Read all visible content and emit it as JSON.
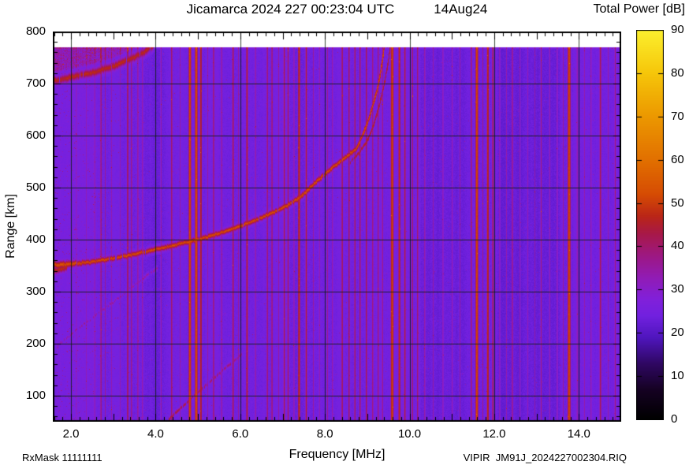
{
  "title": {
    "left": "Jicamarca 2024 227 00:23:04 UTC",
    "right": "14Aug24"
  },
  "colorbar_title": "Total Power [dB]",
  "footer": {
    "rx_mask": "RxMask 11111111",
    "file_name": "VIPIR  JM91J_2024227002304.RIQ"
  },
  "chart_data": {
    "type": "heatmap",
    "title": "Jicamarca 2024 227 00:23:04 UTC  14Aug24",
    "xlabel": "Frequency [MHz]",
    "ylabel": "Range [km]",
    "xlim": [
      1.57,
      15.0
    ],
    "ylim": [
      50,
      800
    ],
    "data_top_km": 770,
    "background_db": 24.3,
    "grid_on": true,
    "grid_color": "rgba(10,30,8,0.8)",
    "x_axis": {
      "minor_step": 0.2,
      "major_step": 1.0,
      "tick_labels": [
        {
          "v": 2.0,
          "t": "2.0"
        },
        {
          "v": 4.0,
          "t": "4.0"
        },
        {
          "v": 6.0,
          "t": "6.0"
        },
        {
          "v": 8.0,
          "t": "8.0"
        },
        {
          "v": 10.0,
          "t": "10.0"
        },
        {
          "v": 12.0,
          "t": "12.0"
        },
        {
          "v": 14.0,
          "t": "14.0"
        }
      ]
    },
    "y_axis": {
      "minor_step": 20,
      "major_step": 100,
      "tick_labels": [
        {
          "v": 100,
          "t": "100"
        },
        {
          "v": 200,
          "t": "200"
        },
        {
          "v": 300,
          "t": "300"
        },
        {
          "v": 400,
          "t": "400"
        },
        {
          "v": 500,
          "t": "500"
        },
        {
          "v": 600,
          "t": "600"
        },
        {
          "v": 700,
          "t": "700"
        },
        {
          "v": 800,
          "t": "800"
        }
      ]
    },
    "colorbar": {
      "label": "Total Power [dB]",
      "min": 0,
      "max": 90,
      "tick_step": 10,
      "tick_labels": [
        {
          "v": 0,
          "t": "0"
        },
        {
          "v": 10,
          "t": "10"
        },
        {
          "v": 20,
          "t": "20"
        },
        {
          "v": 30,
          "t": "30"
        },
        {
          "v": 40,
          "t": "40"
        },
        {
          "v": 50,
          "t": "50"
        },
        {
          "v": 60,
          "t": "60"
        },
        {
          "v": 70,
          "t": "70"
        },
        {
          "v": 80,
          "t": "80"
        },
        {
          "v": 90,
          "t": "90"
        }
      ]
    },
    "palette_stops": [
      [
        0,
        0,
        0,
        0
      ],
      [
        7,
        22,
        2,
        36
      ],
      [
        13,
        48,
        8,
        100
      ],
      [
        19,
        80,
        22,
        190
      ],
      [
        24,
        114,
        33,
        224
      ],
      [
        28,
        130,
        32,
        218
      ],
      [
        33,
        146,
        28,
        180
      ],
      [
        38,
        158,
        24,
        130
      ],
      [
        43,
        168,
        25,
        72
      ],
      [
        47,
        186,
        38,
        24
      ],
      [
        52,
        214,
        76,
        4
      ],
      [
        60,
        226,
        112,
        0
      ],
      [
        70,
        236,
        152,
        0
      ],
      [
        80,
        246,
        198,
        10
      ],
      [
        90,
        252,
        240,
        46
      ]
    ],
    "shade_bands": [
      [
        1.57,
        2.6,
        1.0
      ],
      [
        3.8,
        4.3,
        -0.7
      ],
      [
        5.45,
        6.05,
        -1.0
      ],
      [
        7.62,
        8.28,
        -0.9
      ],
      [
        10.25,
        11.35,
        -1.6
      ],
      [
        12.05,
        13.6,
        -1.8
      ],
      [
        14.0,
        14.45,
        -0.8
      ]
    ],
    "rfi_stripes": [
      [
        2.12,
        33,
        1.2
      ],
      [
        2.35,
        33,
        1.0
      ],
      [
        2.55,
        34,
        1.2
      ],
      [
        2.7,
        40,
        1.2
      ],
      [
        2.8,
        36,
        1.0
      ],
      [
        2.95,
        34,
        1.0
      ],
      [
        3.15,
        34,
        1.0
      ],
      [
        3.33,
        44,
        1.1
      ],
      [
        3.42,
        40,
        1.0
      ],
      [
        3.57,
        36,
        1.4
      ],
      [
        3.68,
        35,
        1.2
      ],
      [
        4.12,
        35,
        1.2
      ],
      [
        4.37,
        42,
        1.1
      ],
      [
        4.57,
        34,
        1.0
      ],
      [
        4.8,
        52,
        1.9
      ],
      [
        4.95,
        53,
        2.0
      ],
      [
        5.06,
        48,
        1.4
      ],
      [
        5.22,
        35,
        1.0
      ],
      [
        5.36,
        41,
        1.1
      ],
      [
        5.55,
        36,
        1.3
      ],
      [
        5.82,
        43,
        1.3
      ],
      [
        5.95,
        36,
        1.0
      ],
      [
        6.15,
        46,
        1.3
      ],
      [
        6.35,
        36,
        1.1
      ],
      [
        6.63,
        41,
        1.1
      ],
      [
        6.74,
        41,
        1.1
      ],
      [
        6.9,
        36,
        1.0
      ],
      [
        7.03,
        42,
        1.3
      ],
      [
        7.12,
        42,
        1.2
      ],
      [
        7.26,
        36,
        1.0
      ],
      [
        7.38,
        49,
        1.6
      ],
      [
        7.55,
        45,
        1.2
      ],
      [
        7.72,
        36,
        1.1
      ],
      [
        7.86,
        35,
        1.0
      ],
      [
        8.05,
        37,
        1.2
      ],
      [
        8.17,
        36,
        1.0
      ],
      [
        8.4,
        42,
        1.3
      ],
      [
        8.56,
        42,
        1.2
      ],
      [
        8.7,
        42,
        1.2
      ],
      [
        8.82,
        42,
        1.2
      ],
      [
        8.97,
        43,
        1.2
      ],
      [
        9.12,
        40,
        1.1
      ],
      [
        9.25,
        40,
        1.1
      ],
      [
        9.35,
        39,
        1.0
      ],
      [
        9.58,
        52,
        2.0
      ],
      [
        9.75,
        49,
        1.5
      ],
      [
        9.88,
        45,
        1.2
      ],
      [
        10.06,
        41,
        1.2
      ],
      [
        10.18,
        41,
        1.2
      ],
      [
        10.35,
        36,
        1.1
      ],
      [
        10.55,
        35,
        1.0
      ],
      [
        10.78,
        35,
        1.0
      ],
      [
        11.0,
        35,
        1.0
      ],
      [
        11.18,
        35,
        1.0
      ],
      [
        11.45,
        40,
        1.2
      ],
      [
        11.58,
        52,
        2.0
      ],
      [
        11.72,
        38,
        1.0
      ],
      [
        11.84,
        49,
        1.5
      ],
      [
        11.96,
        45,
        1.1
      ],
      [
        12.12,
        35,
        1.0
      ],
      [
        12.28,
        34,
        1.0
      ],
      [
        12.42,
        39,
        1.1
      ],
      [
        12.6,
        34,
        1.0
      ],
      [
        12.78,
        34,
        1.0
      ],
      [
        12.95,
        34,
        1.0
      ],
      [
        13.1,
        39,
        1.1
      ],
      [
        13.3,
        35,
        1.0
      ],
      [
        13.48,
        35,
        1.0
      ],
      [
        13.62,
        36,
        1.0
      ],
      [
        13.76,
        52,
        2.2
      ],
      [
        13.95,
        36,
        1.0
      ],
      [
        14.12,
        35,
        1.0
      ],
      [
        14.28,
        36,
        1.0
      ],
      [
        14.5,
        42,
        1.5
      ],
      [
        14.68,
        35,
        1.0
      ],
      [
        14.85,
        39,
        1.2
      ]
    ],
    "traces": [
      {
        "name": "f-region-o-mode",
        "db": 52,
        "sigma": 2.3,
        "sigma_left": 3.3,
        "gap": 0.04,
        "gap2": 0.25,
        "gap2_from": 8.7,
        "pts": [
          [
            1.57,
            352
          ],
          [
            2.0,
            354
          ],
          [
            2.5,
            358
          ],
          [
            3.0,
            365
          ],
          [
            3.5,
            373
          ],
          [
            4.0,
            382
          ],
          [
            4.5,
            391
          ],
          [
            5.0,
            401
          ],
          [
            5.5,
            413
          ],
          [
            6.0,
            427
          ],
          [
            6.5,
            443
          ],
          [
            7.0,
            462
          ],
          [
            7.4,
            481
          ],
          [
            7.8,
            513
          ],
          [
            8.15,
            538
          ],
          [
            8.5,
            560
          ],
          [
            8.75,
            577
          ],
          [
            8.9,
            605
          ],
          [
            9.05,
            638
          ],
          [
            9.17,
            672
          ],
          [
            9.26,
            700
          ],
          [
            9.33,
            735
          ],
          [
            9.38,
            763
          ],
          [
            9.42,
            795
          ]
        ]
      },
      {
        "name": "f-region-x-mode",
        "db": 46,
        "sigma": 1.7,
        "gap": 0.22,
        "pts": [
          [
            8.55,
            545
          ],
          [
            8.8,
            568
          ],
          [
            9.0,
            592
          ],
          [
            9.15,
            622
          ],
          [
            9.28,
            660
          ],
          [
            9.38,
            695
          ],
          [
            9.46,
            730
          ],
          [
            9.52,
            760
          ],
          [
            9.56,
            795
          ]
        ]
      },
      {
        "name": "second-hop-trace",
        "db": 47,
        "sigma": 3.4,
        "gap": 0.04,
        "pts": [
          [
            1.57,
            706
          ],
          [
            2.0,
            713
          ],
          [
            2.5,
            722
          ],
          [
            3.0,
            734
          ],
          [
            3.4,
            748
          ],
          [
            3.7,
            760
          ],
          [
            3.95,
            775
          ]
        ]
      },
      {
        "name": "left-edge-blob",
        "db": 47,
        "sigma": 3.0,
        "gap": 0.0,
        "pts": [
          [
            1.57,
            341
          ],
          [
            1.9,
            346
          ]
        ]
      }
    ],
    "slant_echoes": [
      {
        "db": 37,
        "db_end": 35,
        "sigma": 1.3,
        "gap": 0.5,
        "jitter": 2.2,
        "pts": [
          [
            1.62,
            192
          ],
          [
            2.1,
            226
          ],
          [
            2.6,
            257
          ],
          [
            3.1,
            288
          ],
          [
            3.6,
            320
          ],
          [
            4.05,
            348
          ]
        ]
      },
      {
        "db": 45,
        "db_end": 37,
        "sigma": 1.6,
        "gap": 0.3,
        "jitter": 1.2,
        "pts": [
          [
            4.3,
            55
          ],
          [
            4.65,
            82
          ],
          [
            5.0,
            108
          ],
          [
            5.5,
            144
          ],
          [
            6.05,
            182
          ]
        ]
      }
    ],
    "spread_noise_region": {
      "f_max": 4.0,
      "offset_km": 12,
      "db_min": 4.5,
      "db_max": 11.5
    },
    "left_speckle": {
      "f1": 2.2,
      "p1": 0.028,
      "f2": 3.2,
      "p2": 0.016,
      "f3": 4.3,
      "p3": 0.009,
      "p_rest": 0.0045
    }
  }
}
